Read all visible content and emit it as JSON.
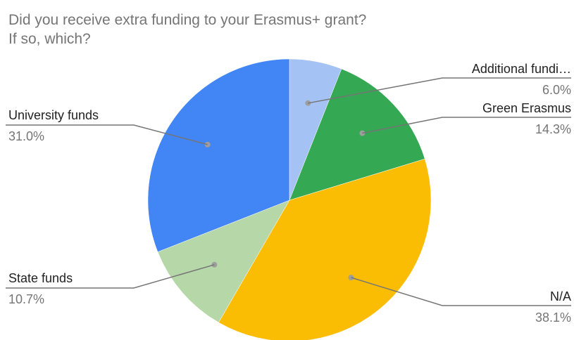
{
  "chart_data": {
    "type": "pie",
    "title_lines": [
      "Did you receive extra funding to your Erasmus+ grant?",
      "If so, which?"
    ],
    "slices": [
      {
        "label": "Additional fundi…",
        "value": 6.0,
        "pct_label": "6.0%",
        "color": "#a4c2f4"
      },
      {
        "label": "Green Erasmus",
        "value": 14.3,
        "pct_label": "14.3%",
        "color": "#34a853"
      },
      {
        "label": "N/A",
        "value": 38.1,
        "pct_label": "38.1%",
        "color": "#fbbc04"
      },
      {
        "label": "State funds",
        "value": 10.7,
        "pct_label": "10.7%",
        "color": "#b6d7a8"
      },
      {
        "label": "University funds",
        "value": 31.0,
        "pct_label": "31.0%",
        "color": "#4285f4"
      }
    ],
    "start_angle_deg": 0,
    "direction": "clockwise",
    "legend": "none"
  }
}
